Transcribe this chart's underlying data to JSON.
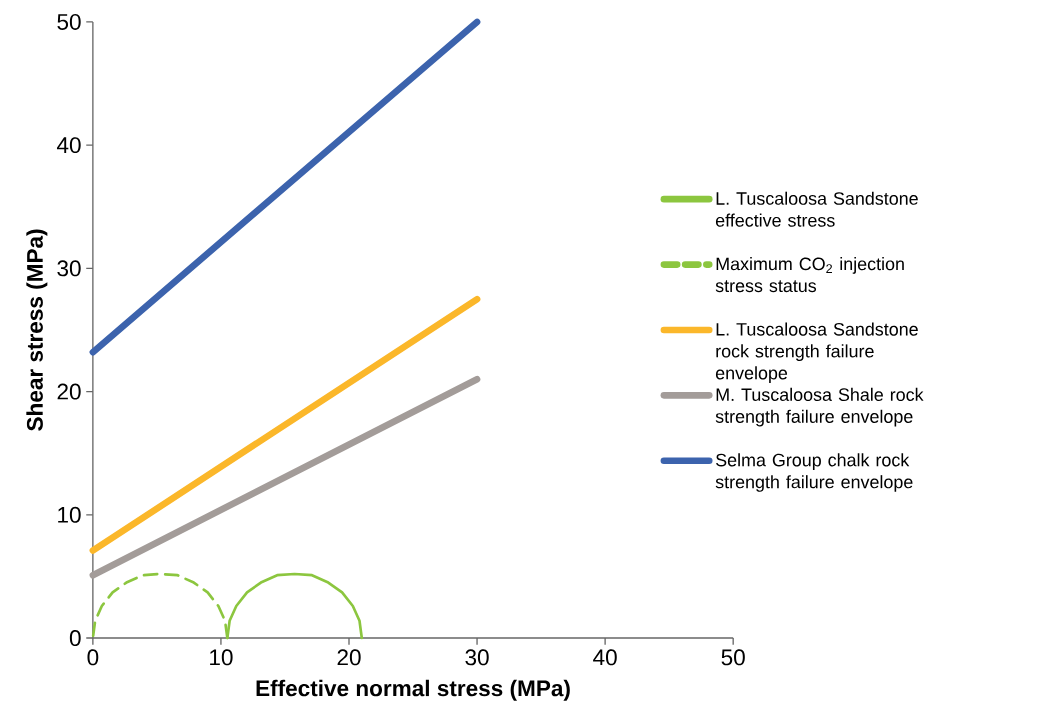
{
  "chart_data": {
    "type": "line",
    "xlabel": "Effective normal stress (MPa)",
    "ylabel": "Shear stress (MPa)",
    "xlim": [
      0,
      50
    ],
    "ylim": [
      0,
      50
    ],
    "xticks": [
      0,
      10,
      20,
      30,
      40,
      50
    ],
    "yticks": [
      0,
      10,
      20,
      30,
      40,
      50
    ],
    "grid": false,
    "legend": "right",
    "marker": "none",
    "series": [
      {
        "name": "L. Tuscaloosa Sandstone effective stress",
        "color": "#8cc63f",
        "line_style": "solid",
        "x": [
          21,
          20.82,
          20.3,
          19.46,
          18.38,
          17.11,
          15.75,
          14.39,
          13.12,
          12.04,
          11.2,
          10.68,
          10.5
        ],
        "values": [
          0,
          1.4,
          2.6,
          3.7,
          4.5,
          5.1,
          5.2,
          5.1,
          4.5,
          3.7,
          2.6,
          1.4,
          0
        ]
      },
      {
        "name": "Maximum CO$_{2}$ injection stress status",
        "color": "#8cc63f",
        "line_style": "dashed",
        "x": [
          10.5,
          10.32,
          9.8,
          8.96,
          7.88,
          6.61,
          5.25,
          3.89,
          2.62,
          1.54,
          0.7,
          0.18,
          0
        ],
        "values": [
          0,
          1.4,
          2.6,
          3.7,
          4.5,
          5.1,
          5.2,
          5.1,
          4.5,
          3.7,
          2.6,
          1.4,
          0
        ]
      },
      {
        "name": "L. Tuscaloosa Sandstone rock strength failure envelope",
        "color": "#fbb72a",
        "line_style": "solid",
        "x": [
          0,
          30
        ],
        "values": [
          7.1,
          27.5
        ]
      },
      {
        "name": "M. Tuscaloosa Shale rock strength failure envelope",
        "color": "#a39c99",
        "line_style": "solid",
        "x": [
          0,
          30
        ],
        "values": [
          5.1,
          21
        ]
      },
      {
        "name": "Selma Group chalk rock strength failure envelope",
        "color": "#3c63ad",
        "line_style": "solid",
        "x": [
          0,
          30
        ],
        "values": [
          23.2,
          50
        ]
      }
    ]
  }
}
